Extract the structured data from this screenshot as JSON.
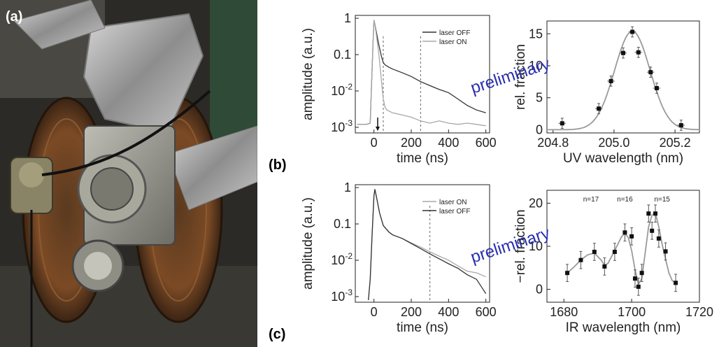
{
  "panel_labels": {
    "a": "(a)",
    "b": "(b)",
    "c": "(c)"
  },
  "watermark": "preliminary",
  "colors": {
    "dark": "#333333",
    "light": "#a8a8a8",
    "watermark": "#2a2fb0",
    "fit": "#9a9a9a"
  },
  "chart_data": [
    {
      "id": "b-left",
      "type": "line",
      "xlabel": "time  (ns)",
      "ylabel": "amplitude  (a.u.)",
      "xlim": [
        -100,
        620
      ],
      "ylim": [
        0.0007,
        1.2
      ],
      "yscale": "log",
      "xticks": [
        0,
        200,
        400,
        600
      ],
      "xtick_labels": [
        "0",
        "200",
        "400",
        "600"
      ],
      "yticks": [
        1,
        0.1,
        0.01,
        0.001
      ],
      "ytick_labels": [
        "1",
        "0.1",
        "10^-2",
        "10^-3"
      ],
      "vlines": [
        50,
        250
      ],
      "arrow_x": 20,
      "legend": "top-right",
      "series": [
        {
          "name": "laser OFF",
          "style": "dark",
          "x": [
            -90,
            -40,
            -20,
            -5,
            0,
            10,
            25,
            40,
            50,
            60,
            80,
            100,
            150,
            200,
            250,
            300,
            350,
            400,
            450,
            500,
            550,
            600
          ],
          "y": [
            0.0012,
            0.0012,
            0.0013,
            0.2,
            0.9,
            0.5,
            0.2,
            0.09,
            0.06,
            0.052,
            0.045,
            0.04,
            0.032,
            0.025,
            0.018,
            0.014,
            0.011,
            0.009,
            0.006,
            0.004,
            0.003,
            0.0025
          ]
        },
        {
          "name": "laser ON",
          "style": "light",
          "x": [
            -90,
            -40,
            -20,
            -5,
            0,
            10,
            25,
            40,
            50,
            60,
            70,
            80,
            100,
            150,
            200,
            250,
            300,
            350,
            400,
            450,
            500,
            550,
            600
          ],
          "y": [
            0.0012,
            0.0012,
            0.0013,
            0.2,
            0.9,
            0.45,
            0.12,
            0.02,
            0.006,
            0.0035,
            0.003,
            0.0028,
            0.0025,
            0.0022,
            0.0019,
            0.0015,
            0.0013,
            0.0015,
            0.0013,
            0.0012,
            0.0013,
            0.0012,
            0.0011
          ]
        }
      ]
    },
    {
      "id": "b-right",
      "type": "scatter",
      "xlabel": "UV wavelength  (nm)",
      "ylabel": "rel. fraction",
      "xlim": [
        204.78,
        205.28
      ],
      "ylim": [
        -0.5,
        17
      ],
      "xticks": [
        204.8,
        205.0,
        205.2
      ],
      "xtick_labels": [
        "204.8",
        "205.0",
        "205.2"
      ],
      "yticks": [
        0,
        5,
        10,
        15
      ],
      "ytick_labels": [
        "0",
        "5",
        "10",
        "15"
      ],
      "points": [
        {
          "x": 204.83,
          "y": 1.0,
          "xerr": 0.012,
          "yerr": 0.8
        },
        {
          "x": 204.95,
          "y": 3.3,
          "xerr": 0.012,
          "yerr": 0.8
        },
        {
          "x": 204.99,
          "y": 7.6,
          "xerr": 0.012,
          "yerr": 0.8
        },
        {
          "x": 205.03,
          "y": 12.0,
          "xerr": 0.012,
          "yerr": 0.8
        },
        {
          "x": 205.06,
          "y": 15.3,
          "xerr": 0.012,
          "yerr": 0.8
        },
        {
          "x": 205.08,
          "y": 12.1,
          "xerr": 0.012,
          "yerr": 0.8
        },
        {
          "x": 205.12,
          "y": 9.0,
          "xerr": 0.012,
          "yerr": 0.8
        },
        {
          "x": 205.14,
          "y": 6.5,
          "xerr": 0.012,
          "yerr": 0.8
        },
        {
          "x": 205.22,
          "y": 0.7,
          "xerr": 0.012,
          "yerr": 0.8
        }
      ],
      "fit": {
        "type": "gaussian",
        "amplitude": 15.4,
        "center": 205.06,
        "sigma": 0.058
      }
    },
    {
      "id": "c-left",
      "type": "line",
      "xlabel": "time  (ns)",
      "ylabel": "amplitude  (a.u.)",
      "xlim": [
        -100,
        620
      ],
      "ylim": [
        0.0007,
        1.2
      ],
      "yscale": "log",
      "xticks": [
        0,
        200,
        400,
        600
      ],
      "xtick_labels": [
        "0",
        "200",
        "400",
        "600"
      ],
      "yticks": [
        1,
        0.1,
        0.01,
        0.001
      ],
      "ytick_labels": [
        "1",
        "0.1",
        "10^-2",
        "10^-3"
      ],
      "vlines": [
        300
      ],
      "legend": "top-right",
      "series": [
        {
          "name": "laser ON",
          "style": "light",
          "x": [
            -30,
            -20,
            -10,
            0,
            5,
            15,
            30,
            50,
            80,
            100,
            150,
            200,
            250,
            300,
            350,
            400,
            450,
            500,
            550,
            600
          ],
          "y": [
            0.0008,
            0.003,
            0.05,
            0.6,
            0.9,
            0.5,
            0.2,
            0.09,
            0.06,
            0.05,
            0.04,
            0.03,
            0.023,
            0.017,
            0.013,
            0.01,
            0.007,
            0.005,
            0.0045,
            0.0035
          ]
        },
        {
          "name": "laser OFF",
          "style": "dark",
          "x": [
            -30,
            -20,
            -10,
            0,
            5,
            15,
            30,
            50,
            80,
            100,
            150,
            200,
            250,
            300,
            350,
            400,
            450,
            500,
            550,
            600
          ],
          "y": [
            0.0008,
            0.003,
            0.05,
            0.6,
            0.9,
            0.5,
            0.2,
            0.09,
            0.06,
            0.05,
            0.04,
            0.029,
            0.021,
            0.015,
            0.011,
            0.008,
            0.006,
            0.004,
            0.003,
            0.0012
          ]
        }
      ]
    },
    {
      "id": "c-right",
      "type": "scatter",
      "xlabel": "IR wavelength  (nm)",
      "ylabel": "rel. fraction",
      "xlim": [
        1675,
        1720
      ],
      "ylim": [
        -3,
        23
      ],
      "xticks": [
        1680,
        1700,
        1720
      ],
      "xtick_labels": [
        "1680",
        "1700",
        "1720"
      ],
      "yticks": [
        0,
        10,
        20
      ],
      "ytick_labels": [
        "0",
        "10",
        "20"
      ],
      "annotations": [
        {
          "text": "n=17",
          "x": 1688
        },
        {
          "text": "n=16",
          "x": 1698
        },
        {
          "text": "n=15",
          "x": 1709
        }
      ],
      "points": [
        {
          "x": 1681,
          "y": 3.8,
          "yerr": 2.0
        },
        {
          "x": 1685,
          "y": 6.8,
          "yerr": 2.0
        },
        {
          "x": 1689,
          "y": 8.7,
          "yerr": 2.0
        },
        {
          "x": 1692,
          "y": 5.3,
          "yerr": 2.0
        },
        {
          "x": 1695,
          "y": 8.7,
          "yerr": 2.0
        },
        {
          "x": 1698,
          "y": 13.2,
          "yerr": 2.0
        },
        {
          "x": 1700,
          "y": 12.3,
          "yerr": 2.0
        },
        {
          "x": 1701,
          "y": 2.5,
          "yerr": 2.0
        },
        {
          "x": 1702,
          "y": 0.6,
          "yerr": 2.0
        },
        {
          "x": 1703,
          "y": 3.8,
          "yerr": 2.0
        },
        {
          "x": 1705,
          "y": 17.6,
          "yerr": 2.0
        },
        {
          "x": 1706,
          "y": 13.6,
          "yerr": 2.0
        },
        {
          "x": 1707,
          "y": 17.6,
          "yerr": 2.0
        },
        {
          "x": 1708,
          "y": 11.8,
          "yerr": 2.0
        },
        {
          "x": 1710,
          "y": 8.8,
          "yerr": 2.0
        },
        {
          "x": 1713,
          "y": 1.5,
          "yerr": 2.0
        }
      ],
      "fit": {
        "type": "curve",
        "x": [
          1681,
          1683,
          1685,
          1687,
          1689,
          1691,
          1692,
          1693,
          1695,
          1697,
          1698,
          1699,
          1700,
          1701,
          1702,
          1703,
          1704,
          1705,
          1706,
          1707,
          1708,
          1709,
          1710,
          1711,
          1712,
          1713
        ],
        "y": [
          3.8,
          5.2,
          6.8,
          8.0,
          8.4,
          6.8,
          5.6,
          6.0,
          9.0,
          12.2,
          13.0,
          12.0,
          9.0,
          4.5,
          1.2,
          2.5,
          8.5,
          14.5,
          17.2,
          17.8,
          14.5,
          10.5,
          7.0,
          3.8,
          2.0,
          1.5
        ]
      }
    }
  ]
}
